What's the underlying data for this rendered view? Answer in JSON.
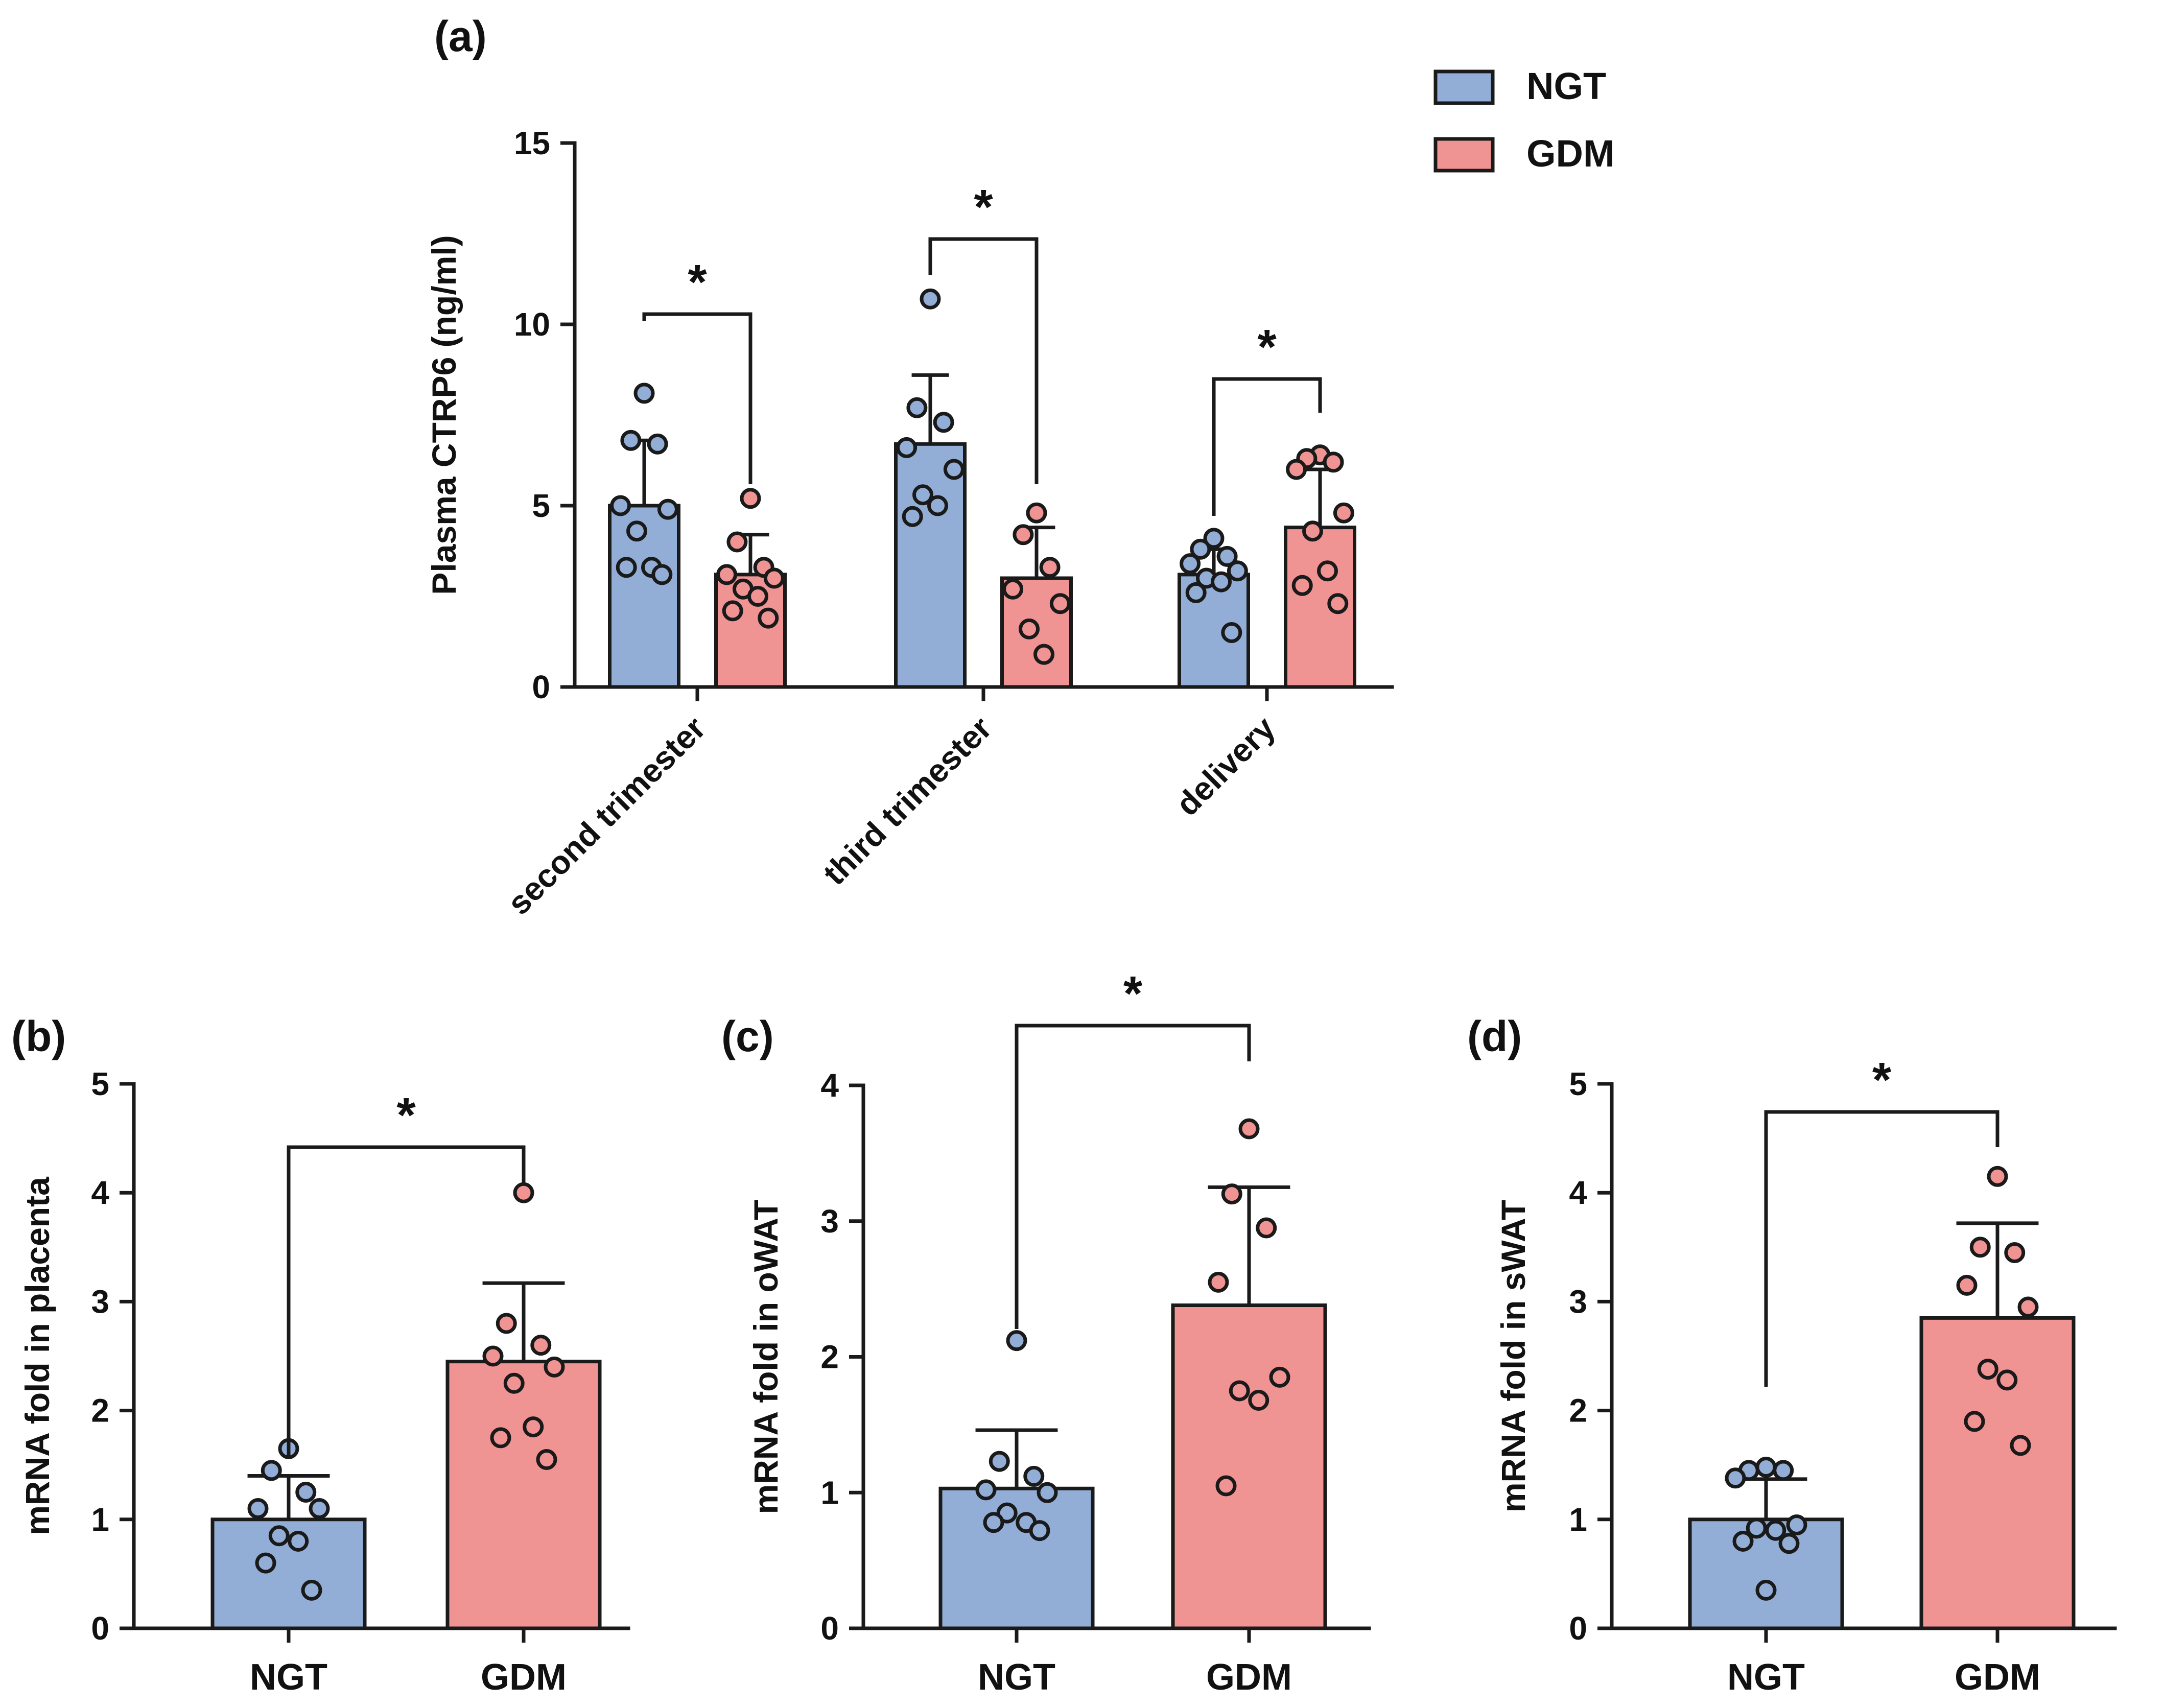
{
  "colors": {
    "ngt": "#93aed6",
    "gdm": "#f09393",
    "axis": "#1a1a1a"
  },
  "legend": {
    "items": [
      {
        "label": "NGT",
        "color_key": "ngt"
      },
      {
        "label": "GDM",
        "color_key": "gdm"
      }
    ]
  },
  "chart_data": [
    {
      "panel_label": "(a)",
      "type": "bar",
      "ylabel": "Plasma CTRP6 (ng/ml)",
      "ylim": [
        0,
        15
      ],
      "yticks": [
        0,
        5,
        10,
        15
      ],
      "categories": [
        "second trimester",
        "third trimester",
        "delivery"
      ],
      "series": [
        {
          "name": "NGT",
          "color_key": "ngt",
          "values": [
            5.0,
            6.7,
            3.1
          ],
          "sd": [
            1.8,
            1.9,
            0.7
          ],
          "points": [
            [
              8.1,
              6.8,
              6.7,
              5.0,
              4.9,
              4.3,
              3.3,
              3.3,
              3.1
            ],
            [
              10.7,
              7.7,
              7.3,
              6.6,
              6.0,
              5.3,
              5.0,
              4.7
            ],
            [
              4.1,
              3.8,
              3.6,
              3.4,
              3.2,
              3.0,
              2.9,
              2.6,
              1.5
            ]
          ]
        },
        {
          "name": "GDM",
          "color_key": "gdm",
          "values": [
            3.1,
            3.0,
            4.4
          ],
          "sd": [
            1.1,
            1.4,
            1.6
          ],
          "points": [
            [
              5.2,
              4.0,
              3.3,
              3.1,
              3.0,
              2.7,
              2.5,
              2.1,
              1.9
            ],
            [
              4.8,
              4.2,
              3.3,
              2.7,
              2.3,
              1.6,
              0.9
            ],
            [
              6.4,
              6.3,
              6.2,
              6.0,
              4.8,
              4.3,
              3.2,
              2.8,
              2.3
            ]
          ]
        }
      ],
      "significance": [
        {
          "between": [
            0,
            0
          ],
          "label": "*"
        },
        {
          "between": [
            1,
            1
          ],
          "label": "*"
        },
        {
          "between": [
            2,
            2
          ],
          "label": "*"
        }
      ]
    },
    {
      "panel_label": "(b)",
      "type": "bar",
      "ylabel": "mRNA fold in placenta",
      "ylim": [
        0,
        5
      ],
      "yticks": [
        0,
        1,
        2,
        3,
        4,
        5
      ],
      "categories": [
        "NGT",
        "GDM"
      ],
      "colors": [
        "ngt",
        "gdm"
      ],
      "values": [
        1.0,
        2.45
      ],
      "sd": [
        0.4,
        0.72
      ],
      "points": [
        [
          1.65,
          1.45,
          1.25,
          1.1,
          1.1,
          0.85,
          0.8,
          0.6,
          0.35
        ],
        [
          4.0,
          2.8,
          2.6,
          2.5,
          2.4,
          2.25,
          1.85,
          1.75,
          1.55
        ]
      ],
      "significance": {
        "label": "*"
      }
    },
    {
      "panel_label": "(c)",
      "type": "bar",
      "ylabel": "mRNA fold in oWAT",
      "ylim": [
        0,
        4
      ],
      "yticks": [
        0,
        1,
        2,
        3,
        4
      ],
      "categories": [
        "NGT",
        "GDM"
      ],
      "colors": [
        "ngt",
        "gdm"
      ],
      "values": [
        1.03,
        2.38
      ],
      "sd": [
        0.43,
        0.87
      ],
      "points": [
        [
          2.12,
          1.23,
          1.12,
          1.02,
          1.0,
          0.85,
          0.78,
          0.78,
          0.72
        ],
        [
          3.68,
          3.2,
          2.95,
          2.55,
          1.85,
          1.75,
          1.68,
          1.05
        ]
      ],
      "significance": {
        "label": "*"
      }
    },
    {
      "panel_label": "(d)",
      "type": "bar",
      "ylabel": "mRNA fold in sWAT",
      "ylim": [
        0,
        5
      ],
      "yticks": [
        0,
        1,
        2,
        3,
        4,
        5
      ],
      "categories": [
        "NGT",
        "GDM"
      ],
      "colors": [
        "ngt",
        "gdm"
      ],
      "values": [
        1.0,
        2.85
      ],
      "sd": [
        0.37,
        0.87
      ],
      "points": [
        [
          1.48,
          1.45,
          1.45,
          1.38,
          0.95,
          0.92,
          0.9,
          0.8,
          0.78,
          0.35
        ],
        [
          4.15,
          3.5,
          3.45,
          3.15,
          2.95,
          2.38,
          2.28,
          1.9,
          1.68
        ]
      ],
      "significance": {
        "label": "*"
      }
    }
  ]
}
